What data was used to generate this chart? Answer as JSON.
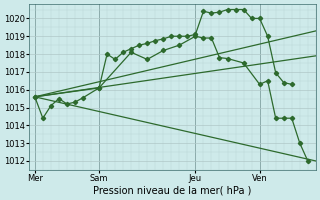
{
  "xlabel": "Pression niveau de la mer( hPa )",
  "bg_color": "#ceeaea",
  "line_color": "#2d6a2d",
  "ylim": [
    1011.5,
    1020.8
  ],
  "yticks": [
    1012,
    1013,
    1014,
    1015,
    1016,
    1017,
    1018,
    1019,
    1020
  ],
  "xtick_labels": [
    "Mer",
    "Sam",
    "Jeu",
    "Ven"
  ],
  "xtick_positions": [
    0,
    24,
    60,
    84
  ],
  "xlim": [
    -2,
    105
  ],
  "vlines": [
    0,
    24,
    60,
    84
  ],
  "curve1_x": [
    0,
    3,
    6,
    9,
    12,
    15,
    18,
    24,
    27,
    30,
    33,
    36,
    39,
    42,
    45,
    48,
    51,
    54,
    57,
    60,
    63,
    66,
    69,
    72,
    75,
    78,
    81,
    84,
    87,
    90,
    93,
    96
  ],
  "curve1_y": [
    1015.6,
    1014.4,
    1015.1,
    1015.5,
    1015.2,
    1015.3,
    1015.55,
    1016.1,
    1018.0,
    1017.7,
    1018.1,
    1018.3,
    1018.5,
    1018.6,
    1018.75,
    1018.85,
    1019.0,
    1019.0,
    1019.0,
    1019.1,
    1020.4,
    1020.3,
    1020.35,
    1020.5,
    1020.5,
    1020.5,
    1020.0,
    1020.0,
    1019.0,
    1016.95,
    1016.4,
    1016.3
  ],
  "curve2_x": [
    0,
    24,
    36,
    42,
    48,
    54,
    60,
    63,
    66,
    69,
    72,
    78,
    84,
    87,
    90,
    93,
    96,
    99,
    102
  ],
  "curve2_y": [
    1015.6,
    1016.1,
    1018.1,
    1017.7,
    1018.2,
    1018.5,
    1019.0,
    1018.9,
    1018.9,
    1017.8,
    1017.75,
    1017.5,
    1016.3,
    1016.5,
    1014.4,
    1014.4,
    1014.4,
    1013.0,
    1012.0
  ],
  "fan_lines": [
    {
      "x": [
        0,
        105
      ],
      "y": [
        1015.6,
        1019.3
      ]
    },
    {
      "x": [
        0,
        105
      ],
      "y": [
        1015.6,
        1017.9
      ]
    },
    {
      "x": [
        0,
        105
      ],
      "y": [
        1015.6,
        1012.0
      ]
    }
  ]
}
